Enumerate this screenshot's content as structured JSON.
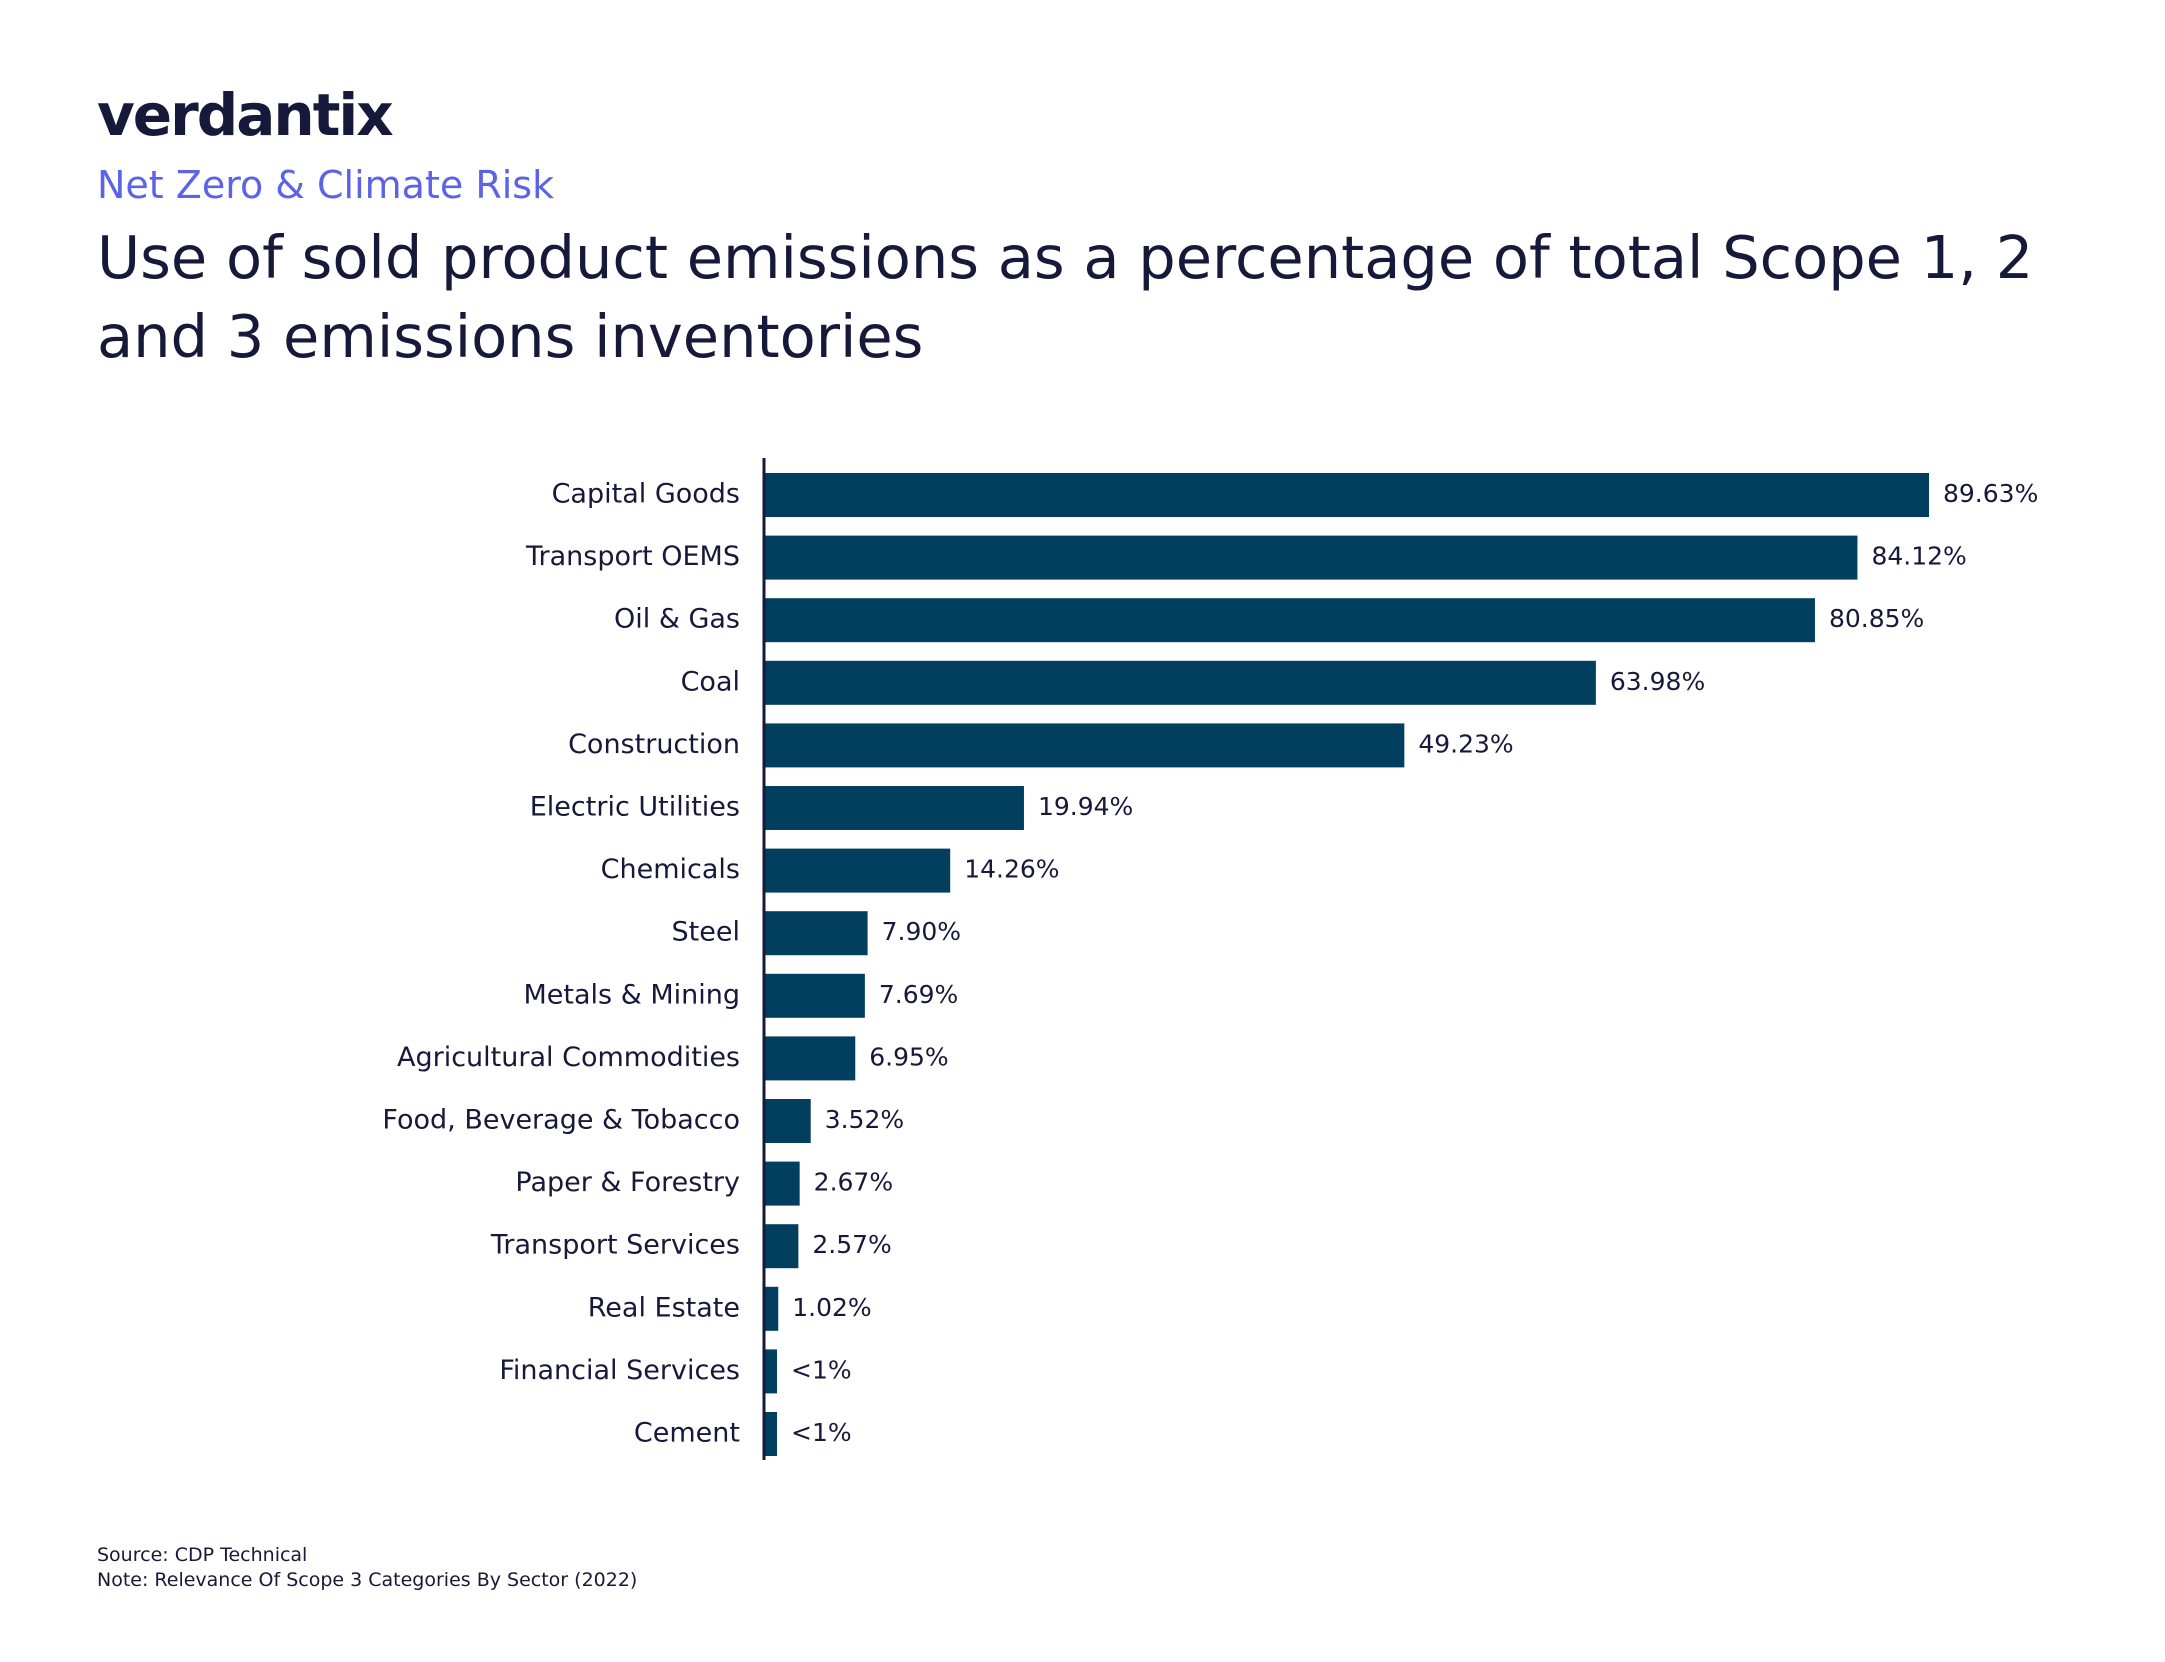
{
  "brand": {
    "logo_text": "verdantix",
    "subtitle": "Net Zero & Climate Risk"
  },
  "chart_data": {
    "type": "bar",
    "orientation": "horizontal",
    "title": "Use of sold product emissions as a percentage of total Scope 1, 2 and 3 emissions inventories",
    "categories": [
      "Capital Goods",
      "Transport OEMS",
      "Oil & Gas",
      "Coal",
      "Construction",
      "Electric Utilities",
      "Chemicals",
      "Steel",
      "Metals & Mining",
      "Agricultural Commodities",
      "Food, Beverage & Tobacco",
      "Paper & Forestry",
      "Transport Services",
      "Real Estate",
      "Financial Services",
      "Cement"
    ],
    "values": [
      89.63,
      84.12,
      80.85,
      63.98,
      49.23,
      19.94,
      14.26,
      7.9,
      7.69,
      6.95,
      3.52,
      2.67,
      2.57,
      1.02,
      0.9,
      0.9
    ],
    "data_labels": [
      "89.63%",
      "84.12%",
      "80.85%",
      "63.98%",
      "49.23%",
      "19.94%",
      "14.26%",
      "7.90%",
      "7.69%",
      "6.95%",
      "3.52%",
      "2.67%",
      "2.57%",
      "1.02%",
      "<1%",
      "<1%"
    ],
    "xlim": [
      0,
      100
    ],
    "grid": false,
    "legend": "none",
    "bar_color": "#023f5f"
  },
  "footer": {
    "source": "Source: CDP Technical",
    "note": "Note: Relevance Of Scope 3 Categories By Sector (2022)"
  }
}
